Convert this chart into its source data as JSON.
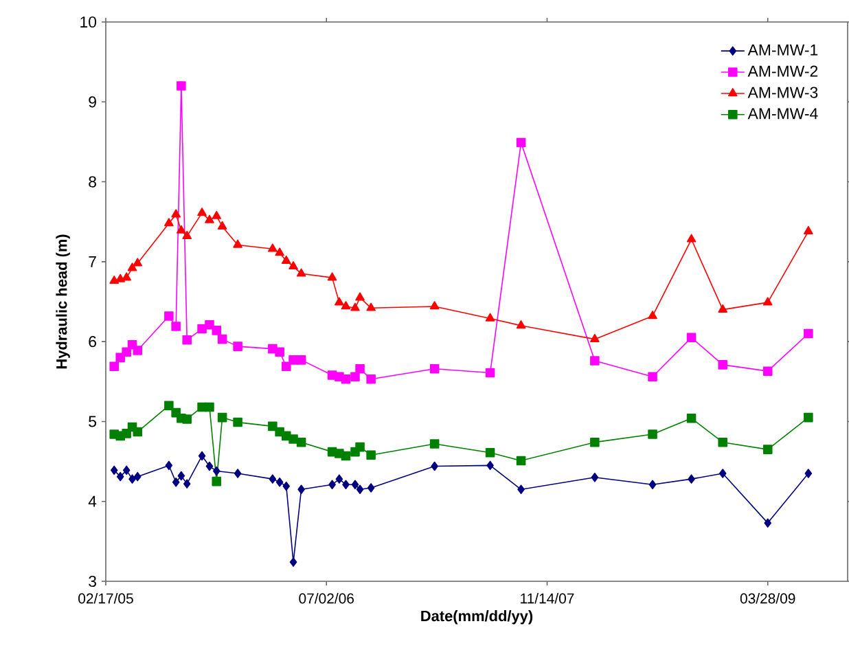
{
  "chart_data": {
    "type": "line",
    "xlabel": "Date(mm/dd/yy)",
    "ylabel": "Hydraulic head (m)",
    "xlim": [
      "2005-02-17",
      "2009-09-25"
    ],
    "xticks": [
      {
        "value": "2005-02-17",
        "label": "02/17/05"
      },
      {
        "value": "2006-07-02",
        "label": "07/02/06"
      },
      {
        "value": "2007-11-14",
        "label": "11/14/07"
      },
      {
        "value": "2009-03-28",
        "label": "03/28/09"
      }
    ],
    "ylim": [
      3,
      10
    ],
    "yticks": [
      3,
      4,
      5,
      6,
      7,
      8,
      9,
      10
    ],
    "grid": false,
    "legend": "top right",
    "line_style": "solid",
    "series": [
      {
        "name": "AM-MW-1",
        "color": "#000080",
        "marker": "diamond",
        "x": [
          "2005-03-08",
          "2005-03-22",
          "2005-04-05",
          "2005-04-18",
          "2005-04-30",
          "2005-07-10",
          "2005-07-26",
          "2005-08-07",
          "2005-08-20",
          "2005-09-23",
          "2005-10-10",
          "2005-10-26",
          "2005-12-13",
          "2006-03-02",
          "2006-03-18",
          "2006-04-02",
          "2006-04-18",
          "2006-05-06",
          "2006-07-15",
          "2006-07-31",
          "2006-08-15",
          "2006-09-05",
          "2006-09-16",
          "2006-10-11",
          "2007-03-04",
          "2007-07-08",
          "2007-09-16",
          "2008-03-01",
          "2008-07-10",
          "2008-10-06",
          "2008-12-16",
          "2009-03-28",
          "2009-06-28"
        ],
        "values": [
          4.39,
          4.31,
          4.39,
          4.28,
          4.31,
          4.45,
          4.24,
          4.32,
          4.22,
          4.57,
          4.44,
          4.38,
          4.35,
          4.28,
          4.24,
          4.19,
          3.24,
          4.15,
          4.21,
          4.28,
          4.21,
          4.21,
          4.15,
          4.17,
          4.44,
          4.45,
          4.15,
          4.3,
          4.21,
          4.28,
          4.35,
          3.73,
          4.35
        ]
      },
      {
        "name": "AM-MW-2",
        "color": "#ff00ff",
        "marker": "square",
        "x": [
          "2005-03-08",
          "2005-03-22",
          "2005-04-05",
          "2005-04-18",
          "2005-04-30",
          "2005-07-10",
          "2005-07-26",
          "2005-08-07",
          "2005-08-20",
          "2005-09-23",
          "2005-10-10",
          "2005-10-26",
          "2005-11-08",
          "2005-12-13",
          "2006-03-02",
          "2006-03-18",
          "2006-04-02",
          "2006-04-18",
          "2006-05-06",
          "2006-07-15",
          "2006-07-31",
          "2006-08-15",
          "2006-09-05",
          "2006-09-16",
          "2006-10-11",
          "2007-03-04",
          "2007-07-08",
          "2007-09-16",
          "2008-03-01",
          "2008-07-10",
          "2008-10-06",
          "2008-12-16",
          "2009-03-28",
          "2009-06-28"
        ],
        "values": [
          5.69,
          5.8,
          5.87,
          5.96,
          5.89,
          6.32,
          6.19,
          9.2,
          6.02,
          6.16,
          6.21,
          6.14,
          6.03,
          5.94,
          5.91,
          5.87,
          5.69,
          5.77,
          5.77,
          5.58,
          5.56,
          5.53,
          5.56,
          5.66,
          5.53,
          5.66,
          5.61,
          8.49,
          5.76,
          5.56,
          6.05,
          5.71,
          5.63,
          6.1
        ]
      },
      {
        "name": "AM-MW-3",
        "color": "#ff0000",
        "marker": "triangle",
        "x": [
          "2005-03-08",
          "2005-03-22",
          "2005-04-05",
          "2005-04-18",
          "2005-04-30",
          "2005-07-10",
          "2005-07-26",
          "2005-08-07",
          "2005-08-20",
          "2005-09-23",
          "2005-10-10",
          "2005-10-26",
          "2005-11-08",
          "2005-12-13",
          "2006-03-02",
          "2006-03-18",
          "2006-04-02",
          "2006-04-18",
          "2006-05-06",
          "2006-07-15",
          "2006-07-31",
          "2006-08-15",
          "2006-09-05",
          "2006-09-16",
          "2006-10-11",
          "2007-03-04",
          "2007-07-08",
          "2007-09-16",
          "2008-03-01",
          "2008-07-10",
          "2008-10-06",
          "2008-12-16",
          "2009-03-28",
          "2009-06-28"
        ],
        "values": [
          6.76,
          6.78,
          6.8,
          6.92,
          6.98,
          7.48,
          7.59,
          7.39,
          7.32,
          7.61,
          7.52,
          7.57,
          7.44,
          7.21,
          7.16,
          7.11,
          7.01,
          6.94,
          6.85,
          6.8,
          6.49,
          6.44,
          6.42,
          6.55,
          6.42,
          6.44,
          6.29,
          6.2,
          6.03,
          6.32,
          7.28,
          6.4,
          6.49,
          7.38
        ]
      },
      {
        "name": "AM-MW-4",
        "color": "#008000",
        "marker": "square",
        "x": [
          "2005-03-08",
          "2005-03-22",
          "2005-04-05",
          "2005-04-18",
          "2005-04-30",
          "2005-07-10",
          "2005-07-26",
          "2005-08-07",
          "2005-08-20",
          "2005-09-23",
          "2005-10-10",
          "2005-10-26",
          "2005-11-08",
          "2005-12-13",
          "2006-03-02",
          "2006-03-18",
          "2006-04-02",
          "2006-04-18",
          "2006-05-06",
          "2006-07-15",
          "2006-07-31",
          "2006-08-15",
          "2006-09-05",
          "2006-09-16",
          "2006-10-11",
          "2007-03-04",
          "2007-07-08",
          "2007-09-16",
          "2008-03-01",
          "2008-07-10",
          "2008-10-06",
          "2008-12-16",
          "2009-03-28",
          "2009-06-28"
        ],
        "values": [
          4.84,
          4.82,
          4.85,
          4.93,
          4.87,
          5.2,
          5.11,
          5.04,
          5.03,
          5.18,
          5.18,
          4.25,
          5.05,
          4.99,
          4.94,
          4.87,
          4.82,
          4.78,
          4.74,
          4.62,
          4.6,
          4.57,
          4.62,
          4.68,
          4.58,
          4.72,
          4.61,
          4.51,
          4.74,
          4.84,
          5.04,
          4.74,
          4.65,
          5.05
        ]
      }
    ]
  }
}
